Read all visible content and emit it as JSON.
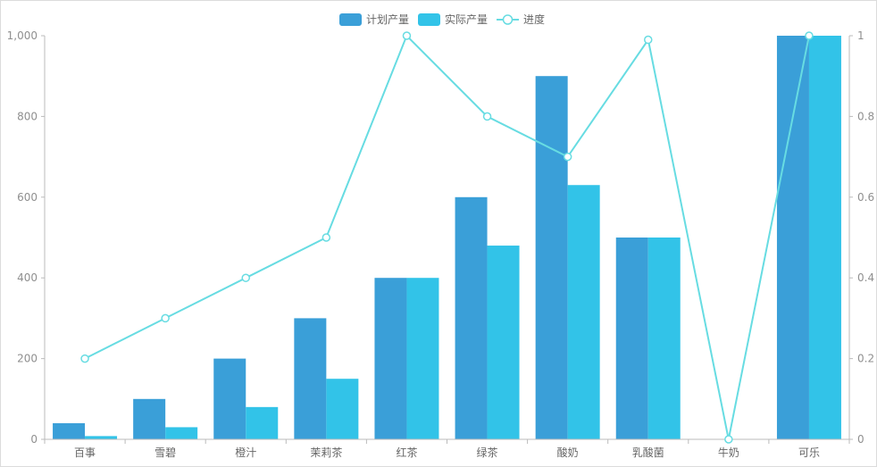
{
  "chart_data": {
    "type": "bar",
    "categories": [
      "百事",
      "雪碧",
      "橙汁",
      "茉莉茶",
      "红茶",
      "绿茶",
      "酸奶",
      "乳酸菌",
      "牛奶",
      "可乐"
    ],
    "series": [
      {
        "name": "计划产量",
        "type": "bar",
        "axis": "left",
        "values": [
          40,
          100,
          200,
          300,
          400,
          600,
          900,
          500,
          0,
          1000
        ]
      },
      {
        "name": "实际产量",
        "type": "bar",
        "axis": "left",
        "values": [
          8,
          30,
          80,
          150,
          400,
          480,
          630,
          500,
          0,
          1000
        ]
      },
      {
        "name": "进度",
        "type": "line",
        "axis": "right",
        "values": [
          0.2,
          0.3,
          0.4,
          0.5,
          1,
          0.8,
          0.7,
          0.99,
          0,
          1
        ]
      }
    ],
    "y_left": {
      "min": 0,
      "max": 1000,
      "ticks": [
        "0",
        "200",
        "400",
        "600",
        "800",
        "1,000"
      ]
    },
    "y_right": {
      "min": 0,
      "max": 1,
      "ticks": [
        "0",
        "0.2",
        "0.4",
        "0.6",
        "0.8",
        "1"
      ]
    },
    "legend_position": "top-center",
    "grid": false,
    "colors": {
      "plan": "#3a9fd8",
      "actual": "#32c3e8",
      "progress": "#67dce2",
      "axis": "#bbbbbb"
    }
  }
}
